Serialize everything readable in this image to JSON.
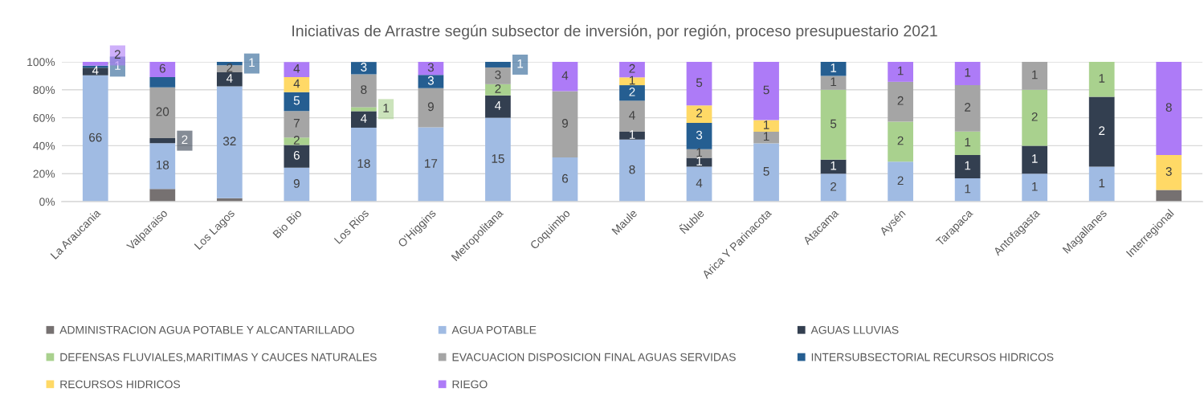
{
  "chart_data": {
    "type": "bar",
    "stacked": true,
    "title": "Iniciativas de Arrastre según subsector de inversión, por región, proceso presupuestario 2021",
    "categories": [
      "La Araucania",
      "Valparaiso",
      "Los Lagos",
      "Bio Bio",
      "Los Rios",
      "O'Higgins",
      "Metropolitana",
      "Coquimbo",
      "Maule",
      "Ñuble",
      "Arica Y Parinacota",
      "Atacama",
      "Aysén",
      "Tarapaca",
      "Antofagasta",
      "Magallanes",
      "Interregional"
    ],
    "ylim": [
      0,
      100
    ],
    "yticks": [
      {
        "value": 0,
        "label": "0%"
      },
      {
        "value": 20,
        "label": "20%"
      },
      {
        "value": 40,
        "label": "40%"
      },
      {
        "value": 60,
        "label": "60%"
      },
      {
        "value": 80,
        "label": "80%"
      },
      {
        "value": 100,
        "label": "100%"
      }
    ],
    "grid": "y",
    "legend": "bottom",
    "series": [
      {
        "name": "ADMINISTRACION AGUA POTABLE Y ALCANTARILLADO",
        "color": "#767171",
        "values": [
          null,
          9.1,
          2.5,
          null,
          null,
          null,
          null,
          null,
          null,
          null,
          null,
          null,
          null,
          null,
          null,
          null,
          8.3
        ]
      },
      {
        "name": "AGUA POTABLE",
        "color": "#A0BBE3",
        "values": [
          90.4,
          32.7,
          80,
          24.3,
          52.9,
          53.1,
          60,
          31.6,
          44.4,
          25,
          41.7,
          20,
          28.6,
          16.7,
          20,
          25,
          null
        ]
      },
      {
        "name": "AGUAS LLUVIAS",
        "color": "#333F50",
        "values": [
          5.5,
          3.6,
          10,
          16.2,
          11.8,
          null,
          16,
          null,
          5.6,
          6.3,
          null,
          10,
          null,
          16.7,
          20,
          50,
          null
        ]
      },
      {
        "name": "DEFENSAS FLUVIALES,MARITIMAS Y CAUCES NATURALES",
        "color": "#A9D18E",
        "values": [
          null,
          null,
          null,
          5.4,
          2.9,
          null,
          8,
          null,
          null,
          null,
          null,
          50,
          28.6,
          16.7,
          40,
          25,
          null
        ]
      },
      {
        "name": "EVACUACION DISPOSICION FINAL AGUAS SERVIDAS",
        "color": "#A5A5A5",
        "values": [
          null,
          36.4,
          5,
          18.9,
          23.5,
          28.1,
          12,
          47.4,
          22.2,
          6.2,
          8.3,
          10,
          28.5,
          33.3,
          20,
          null,
          null
        ]
      },
      {
        "name": "INTERSUBSECTORIAL RECURSOS HIDRICOS",
        "color": "#255E91",
        "values": [
          1.4,
          7.3,
          2.5,
          13.5,
          8.8,
          9.4,
          4,
          null,
          11.1,
          18.8,
          null,
          10,
          null,
          null,
          null,
          null,
          null
        ]
      },
      {
        "name": "RECURSOS HIDRICOS",
        "color": "#FFD966",
        "values": [
          null,
          null,
          null,
          10.8,
          null,
          null,
          null,
          null,
          5.6,
          12.5,
          8.3,
          null,
          null,
          null,
          null,
          null,
          25
        ]
      },
      {
        "name": "RIEGO",
        "color": "#AD7BF7",
        "values": [
          2.7,
          10.9,
          null,
          10.8,
          null,
          9.4,
          null,
          21.0,
          11.1,
          31.2,
          41.7,
          null,
          14.3,
          16.6,
          null,
          null,
          66.7
        ]
      }
    ],
    "annotations": [
      {
        "text": "66",
        "x": "La Araucania",
        "y": 45.2
      },
      {
        "text": "4",
        "x": "La Araucania",
        "y": 93.2
      },
      {
        "text": "1",
        "x": "La Araucania",
        "y": 96.6
      },
      {
        "text": "2",
        "x": "La Araucania",
        "y": 98.7
      },
      {
        "text": "18",
        "x": "Valparaiso",
        "y": 25.5
      },
      {
        "text": "2",
        "x": "Valparaiso",
        "y": 43.6
      },
      {
        "text": "20",
        "x": "Valparaiso",
        "y": 63.6
      },
      {
        "text": "6",
        "x": "Valparaiso",
        "y": 94.6
      },
      {
        "text": "32",
        "x": "Los Lagos",
        "y": 42.5
      },
      {
        "text": "4",
        "x": "Los Lagos",
        "y": 87.5
      },
      {
        "text": "2",
        "x": "Los Lagos",
        "y": 95
      },
      {
        "text": "1",
        "x": "Los Lagos",
        "y": 98.8
      },
      {
        "text": "9",
        "x": "Bio Bio",
        "y": 12.2
      },
      {
        "text": "6",
        "x": "Bio Bio",
        "y": 32.4
      },
      {
        "text": "2",
        "x": "Bio Bio",
        "y": 43.2
      },
      {
        "text": "7",
        "x": "Bio Bio",
        "y": 55.4
      },
      {
        "text": "5",
        "x": "Bio Bio",
        "y": 71.6
      },
      {
        "text": "4",
        "x": "Bio Bio",
        "y": 83.7
      },
      {
        "text": "4",
        "x": "Bio Bio",
        "y": 94.5
      },
      {
        "text": "18",
        "x": "Los Rios",
        "y": 26.5
      },
      {
        "text": "4",
        "x": "Los Rios",
        "y": 58.8
      },
      {
        "text": "1",
        "x": "Los Rios",
        "y": 66.2
      },
      {
        "text": "8",
        "x": "Los Rios",
        "y": 79.4
      },
      {
        "text": "3",
        "x": "Los Rios",
        "y": 95.5
      },
      {
        "text": "17",
        "x": "O'Higgins",
        "y": 26.6
      },
      {
        "text": "9",
        "x": "O'Higgins",
        "y": 67.2
      },
      {
        "text": "3",
        "x": "O'Higgins",
        "y": 85.9
      },
      {
        "text": "3",
        "x": "O'Higgins",
        "y": 95.3
      },
      {
        "text": "15",
        "x": "Metropolitana",
        "y": 30
      },
      {
        "text": "4",
        "x": "Metropolitana",
        "y": 68
      },
      {
        "text": "2",
        "x": "Metropolitana",
        "y": 80
      },
      {
        "text": "3",
        "x": "Metropolitana",
        "y": 90
      },
      {
        "text": "1",
        "x": "Metropolitana",
        "y": 98
      },
      {
        "text": "6",
        "x": "Coquimbo",
        "y": 15.8
      },
      {
        "text": "9",
        "x": "Coquimbo",
        "y": 55.3
      },
      {
        "text": "4",
        "x": "Coquimbo",
        "y": 89.5
      },
      {
        "text": "8",
        "x": "Maule",
        "y": 22.2
      },
      {
        "text": "1",
        "x": "Maule",
        "y": 47.2
      },
      {
        "text": "4",
        "x": "Maule",
        "y": 61.1
      },
      {
        "text": "2",
        "x": "Maule",
        "y": 77.8
      },
      {
        "text": "1",
        "x": "Maule",
        "y": 86.1
      },
      {
        "text": "2",
        "x": "Maule",
        "y": 94.5
      },
      {
        "text": "4",
        "x": "Ñuble",
        "y": 12.5
      },
      {
        "text": "1",
        "x": "Ñuble",
        "y": 28.2
      },
      {
        "text": "1",
        "x": "Ñuble",
        "y": 34.4
      },
      {
        "text": "3",
        "x": "Ñuble",
        "y": 46.9
      },
      {
        "text": "2",
        "x": "Ñuble",
        "y": 62.6
      },
      {
        "text": "5",
        "x": "Ñuble",
        "y": 84.4
      },
      {
        "text": "5",
        "x": "Arica Y Parinacota",
        "y": 20.9
      },
      {
        "text": "1",
        "x": "Arica Y Parinacota",
        "y": 45.9
      },
      {
        "text": "1",
        "x": "Arica Y Parinacota",
        "y": 54.2
      },
      {
        "text": "5",
        "x": "Arica Y Parinacota",
        "y": 79.2
      },
      {
        "text": "2",
        "x": "Atacama",
        "y": 10
      },
      {
        "text": "1",
        "x": "Atacama",
        "y": 25
      },
      {
        "text": "5",
        "x": "Atacama",
        "y": 55
      },
      {
        "text": "1",
        "x": "Atacama",
        "y": 85
      },
      {
        "text": "1",
        "x": "Atacama",
        "y": 95
      },
      {
        "text": "2",
        "x": "Aysén",
        "y": 14.3
      },
      {
        "text": "2",
        "x": "Aysén",
        "y": 42.9
      },
      {
        "text": "2",
        "x": "Aysén",
        "y": 71.5
      },
      {
        "text": "1",
        "x": "Aysén",
        "y": 92.9
      },
      {
        "text": "1",
        "x": "Tarapaca",
        "y": 8.4
      },
      {
        "text": "1",
        "x": "Tarapaca",
        "y": 25.1
      },
      {
        "text": "1",
        "x": "Tarapaca",
        "y": 41.8
      },
      {
        "text": "2",
        "x": "Tarapaca",
        "y": 66.8
      },
      {
        "text": "1",
        "x": "Tarapaca",
        "y": 91.7
      },
      {
        "text": "1",
        "x": "Antofagasta",
        "y": 10
      },
      {
        "text": "1",
        "x": "Antofagasta",
        "y": 30
      },
      {
        "text": "2",
        "x": "Antofagasta",
        "y": 60
      },
      {
        "text": "1",
        "x": "Antofagasta",
        "y": 90
      },
      {
        "text": "1",
        "x": "Magallanes",
        "y": 12.5
      },
      {
        "text": "2",
        "x": "Magallanes",
        "y": 50
      },
      {
        "text": "1",
        "x": "Magallanes",
        "y": 87.5
      },
      {
        "text": "3",
        "x": "Interregional",
        "y": 20.8
      },
      {
        "text": "8",
        "x": "Interregional",
        "y": 66.7
      }
    ]
  }
}
